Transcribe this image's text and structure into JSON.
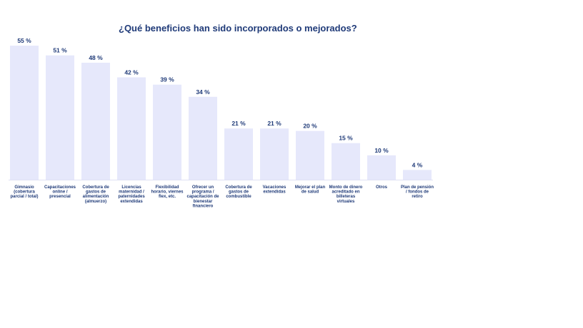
{
  "chart_data": {
    "type": "bar",
    "title": "¿Qué beneficios han sido incorporados o mejorados?",
    "xlabel": "",
    "ylabel": "",
    "ylim": [
      0,
      55
    ],
    "categories": [
      [
        "Gimnasio",
        "(cobertura",
        "parcial / total)"
      ],
      [
        "Capacitaciones",
        "online /",
        "presencial"
      ],
      [
        "Cobertura de",
        "gastos de",
        "alimentación",
        "(almuerzo)"
      ],
      [
        "Licencias",
        "maternidad /",
        "paternidades",
        "extendidas"
      ],
      [
        "Flexibilidad",
        "horario, viernes",
        "flex, etc."
      ],
      [
        "Ofrecer un",
        "programa /",
        "capacitación de",
        "bienestar",
        "financiero"
      ],
      [
        "Cobertura de",
        "gastos de",
        "combustible"
      ],
      [
        "Vacaciones",
        "extendidas"
      ],
      [
        "Mejorar el plan",
        "de salud"
      ],
      [
        "Monto de dinero",
        "acreditado en",
        "billeteras",
        "virtuales"
      ],
      [
        "Otros"
      ],
      [
        "Plan de pensión",
        "/ fondos de",
        "retiro"
      ]
    ],
    "values": [
      55,
      51,
      48,
      42,
      39,
      34,
      21,
      21,
      20,
      15,
      10,
      4
    ],
    "value_labels": [
      "55 %",
      "51 %",
      "48 %",
      "42 %",
      "39 %",
      "34 %",
      "21 %",
      "21 %",
      "20 %",
      "15 %",
      "10 %",
      "4 %"
    ],
    "bar_color": "#e6e8fb",
    "text_color": "#1f3a78",
    "grid": false,
    "legend": "none"
  }
}
